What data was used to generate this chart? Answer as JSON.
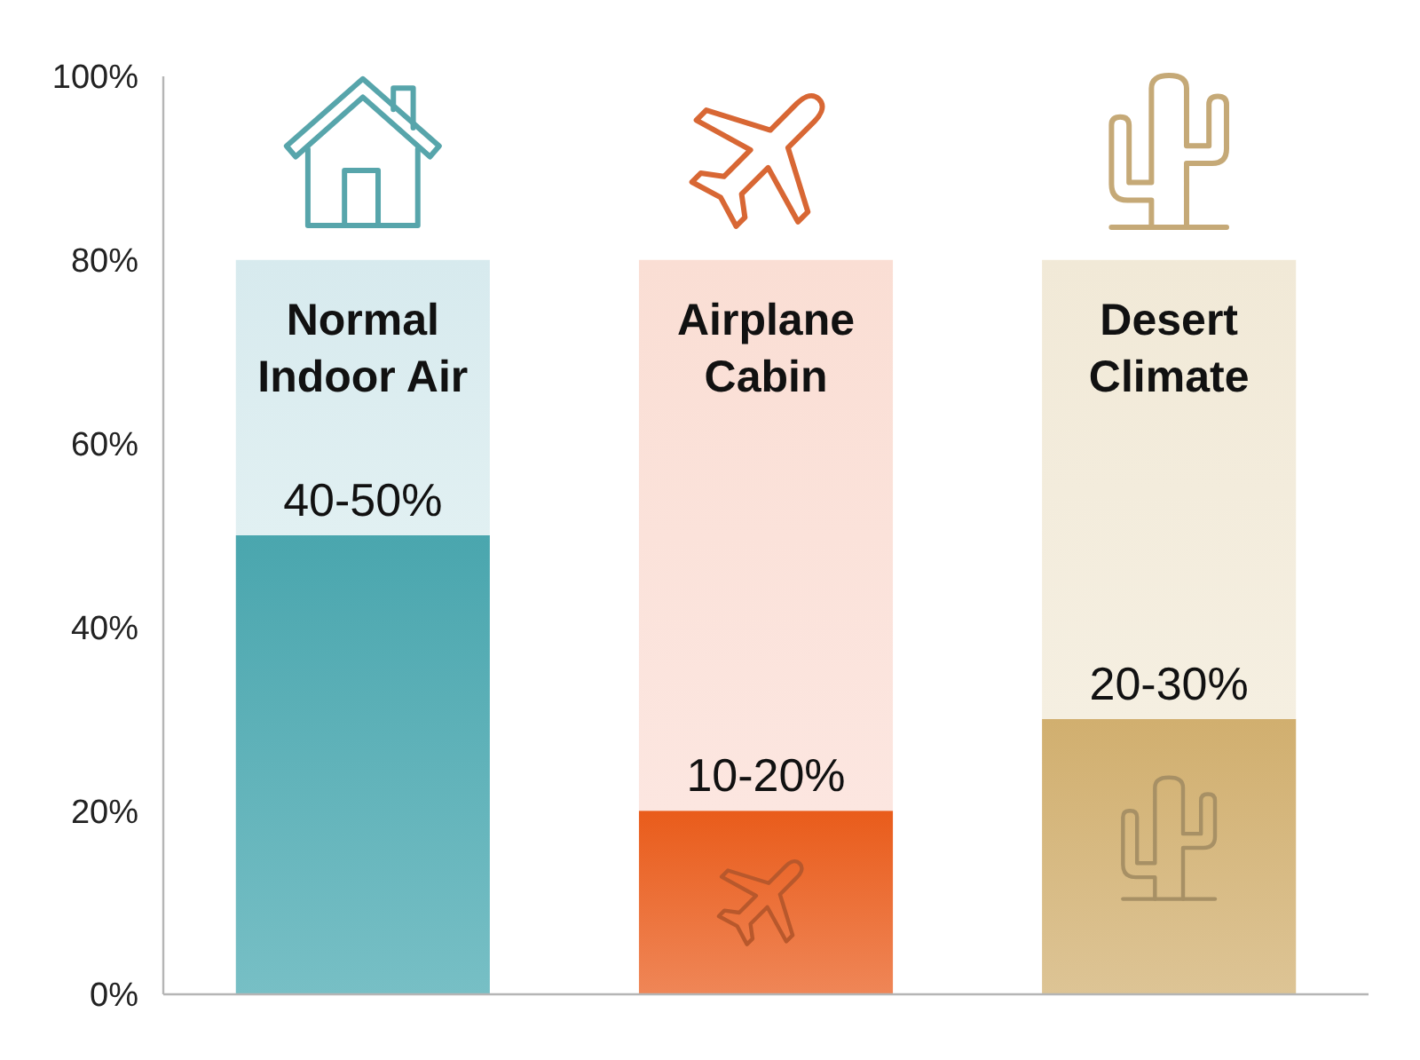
{
  "chart_data": {
    "type": "bar",
    "categories": [
      "Normal Indoor Air",
      "Airplane Cabin",
      "Desert Climate"
    ],
    "stacked": true,
    "series": [
      {
        "values": [
          50,
          20,
          30
        ],
        "colors": [
          "#5fb4bb",
          "#ec7139",
          "#d7b982"
        ]
      },
      {
        "values": [
          30,
          60,
          50
        ],
        "colors": [
          "#dcedf0",
          "#fbe2da",
          "#f3ecdc"
        ]
      }
    ],
    "annotations": [
      {
        "text": "40-50%",
        "x": "Normal Indoor Air",
        "y": 50
      },
      {
        "text": "10-20%",
        "x": "Airplane Cabin",
        "y": 20
      },
      {
        "text": "20-30%",
        "x": "Desert Climate",
        "y": 30
      }
    ],
    "ylim": [
      0,
      100
    ],
    "yticks": [
      {
        "value": 0,
        "label": "0%"
      },
      {
        "value": 20,
        "label": "20%"
      },
      {
        "value": 40,
        "label": "40%"
      },
      {
        "value": 60,
        "label": "60%"
      },
      {
        "value": 80,
        "label": "80%"
      },
      {
        "value": 100,
        "label": "100%"
      }
    ]
  }
}
